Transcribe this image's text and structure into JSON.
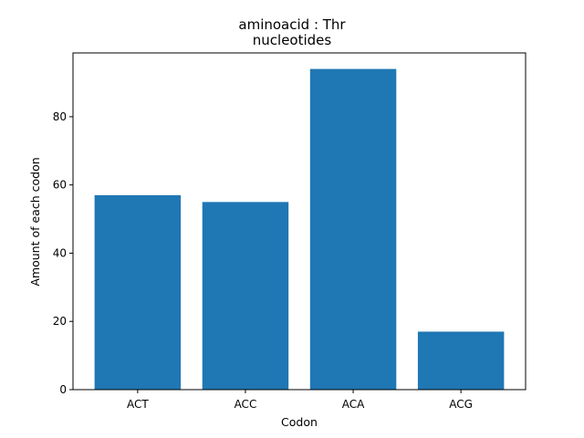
{
  "chart_data": {
    "type": "bar",
    "title_line1": "aminoacid : Thr",
    "title_line2": "nucleotides",
    "xlabel": "Codon",
    "ylabel": "Amount of each codon",
    "categories": [
      "ACT",
      "ACC",
      "ACA",
      "ACG"
    ],
    "values": [
      57,
      55,
      94,
      17
    ],
    "ylim": [
      0,
      98.7
    ],
    "yticks": [
      0,
      20,
      40,
      60,
      80
    ],
    "ytick_labels": [
      "0",
      "20",
      "40",
      "60",
      "80"
    ],
    "grid": false,
    "legend": "none",
    "bar_color": "#1f77b4"
  }
}
